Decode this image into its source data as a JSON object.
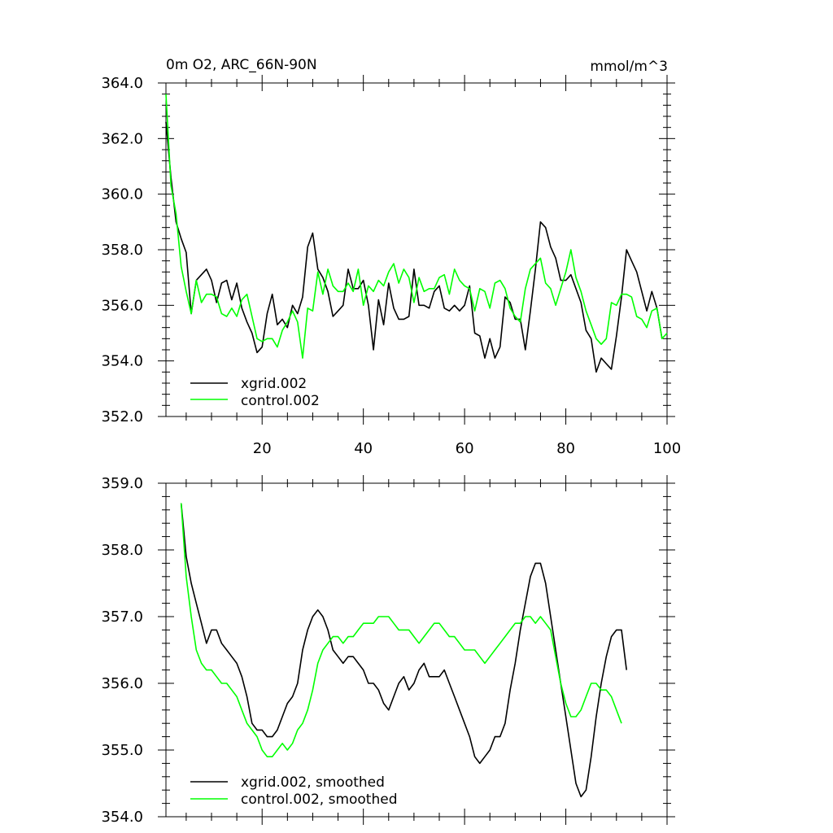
{
  "colors": {
    "series_a": "#000000",
    "series_b": "#00ff00",
    "axis": "#000000",
    "background": "#ffffff"
  },
  "chart_data": [
    {
      "type": "line",
      "title": "0m O2, ARC_66N-90N",
      "units": "mmol/m^3",
      "xlabel": "",
      "ylabel": "",
      "xlim": [
        1,
        100
      ],
      "ylim": [
        352.0,
        364.0
      ],
      "x_ticks": [
        20,
        40,
        60,
        80,
        100
      ],
      "y_ticks": [
        352.0,
        354.0,
        356.0,
        358.0,
        360.0,
        362.0,
        364.0
      ],
      "y_tick_labels": [
        "352.0",
        "354.0",
        "356.0",
        "358.0",
        "360.0",
        "362.0",
        "364.0"
      ],
      "x_tick_labels": [
        "20",
        "40",
        "60",
        "80",
        "100"
      ],
      "legend_position": "bottom-left",
      "series": [
        {
          "name": "xgrid.002",
          "color": "#000000",
          "x_start": 1,
          "values": [
            362.6,
            360.6,
            359.0,
            358.4,
            357.9,
            355.7,
            356.9,
            357.1,
            357.3,
            356.9,
            356.1,
            356.8,
            356.9,
            356.2,
            356.8,
            355.9,
            355.4,
            355.0,
            354.3,
            354.5,
            355.7,
            356.4,
            355.3,
            355.5,
            355.2,
            356.0,
            355.7,
            356.3,
            358.1,
            358.6,
            357.3,
            357.0,
            356.5,
            355.6,
            355.8,
            356.0,
            357.3,
            356.6,
            356.6,
            356.9,
            356.0,
            354.4,
            356.2,
            355.3,
            356.8,
            355.9,
            355.5,
            355.5,
            355.6,
            357.3,
            356.0,
            356.0,
            355.9,
            356.5,
            356.7,
            355.9,
            355.8,
            356.0,
            355.8,
            356.0,
            356.7,
            355.0,
            354.9,
            354.1,
            354.8,
            354.1,
            354.5,
            356.3,
            356.1,
            355.5,
            355.5,
            354.4,
            355.8,
            357.3,
            359.0,
            358.8,
            358.1,
            357.7,
            356.9,
            356.9,
            357.1,
            356.6,
            356.1,
            355.1,
            354.8,
            353.6,
            354.1,
            353.9,
            353.7,
            354.9,
            356.3,
            358.0,
            357.6,
            357.2,
            356.5,
            355.8,
            356.5,
            355.9,
            354.8
          ]
        },
        {
          "name": "control.002",
          "color": "#00ff00",
          "x_start": 1,
          "values": [
            363.6,
            360.3,
            359.3,
            357.4,
            356.5,
            355.7,
            356.9,
            356.1,
            356.4,
            356.4,
            356.3,
            355.7,
            355.6,
            355.9,
            355.6,
            356.2,
            356.4,
            355.6,
            354.8,
            354.7,
            354.8,
            354.8,
            354.5,
            355.1,
            355.4,
            355.8,
            355.4,
            354.1,
            355.9,
            355.8,
            357.2,
            356.4,
            357.3,
            356.7,
            356.5,
            356.5,
            356.8,
            356.5,
            357.3,
            356.0,
            356.7,
            356.5,
            356.9,
            356.7,
            357.2,
            357.5,
            356.8,
            357.3,
            357.0,
            356.1,
            357.0,
            356.5,
            356.6,
            356.6,
            357.0,
            357.1,
            356.4,
            357.3,
            356.9,
            356.7,
            356.6,
            355.8,
            356.6,
            356.5,
            355.9,
            356.8,
            356.9,
            356.6,
            355.9,
            355.6,
            355.4,
            356.6,
            357.3,
            357.5,
            357.7,
            356.8,
            356.6,
            356.0,
            356.6,
            357.2,
            358.0,
            357.0,
            356.5,
            355.8,
            355.3,
            354.8,
            354.6,
            354.8,
            356.1,
            356.0,
            356.4,
            356.4,
            356.3,
            355.6,
            355.5,
            355.2,
            355.8,
            355.9,
            354.8,
            355.0
          ]
        }
      ]
    },
    {
      "type": "line",
      "title": "",
      "xlabel": "",
      "ylabel": "",
      "xlim": [
        1,
        100
      ],
      "ylim": [
        354.0,
        359.0
      ],
      "x_ticks": [
        20,
        40,
        60,
        80,
        100
      ],
      "y_ticks": [
        354.0,
        355.0,
        356.0,
        357.0,
        358.0,
        359.0
      ],
      "y_tick_labels": [
        "354.0",
        "355.0",
        "356.0",
        "357.0",
        "358.0",
        "359.0"
      ],
      "legend_position": "bottom-left",
      "series": [
        {
          "name": "xgrid.002, smoothed",
          "color": "#000000",
          "x_start": 4,
          "values": [
            358.7,
            357.9,
            357.5,
            357.2,
            356.9,
            356.6,
            356.8,
            356.8,
            356.6,
            356.5,
            356.4,
            356.3,
            356.1,
            355.8,
            355.4,
            355.3,
            355.3,
            355.2,
            355.2,
            355.3,
            355.5,
            355.7,
            355.8,
            356.0,
            356.5,
            356.8,
            357.0,
            357.1,
            357.0,
            356.8,
            356.5,
            356.4,
            356.3,
            356.4,
            356.4,
            356.3,
            356.2,
            356.0,
            356.0,
            355.9,
            355.7,
            355.6,
            355.8,
            356.0,
            356.1,
            355.9,
            356.0,
            356.2,
            356.3,
            356.1,
            356.1,
            356.1,
            356.2,
            356.0,
            355.8,
            355.6,
            355.4,
            355.2,
            354.9,
            354.8,
            354.9,
            355.0,
            355.2,
            355.2,
            355.4,
            355.9,
            356.3,
            356.8,
            357.2,
            357.6,
            357.8,
            357.8,
            357.5,
            357.0,
            356.5,
            356.0,
            355.5,
            355.0,
            354.5,
            354.3,
            354.4,
            354.9,
            355.5,
            356.0,
            356.4,
            356.7,
            356.8,
            356.8,
            356.2
          ]
        },
        {
          "name": "control.002, smoothed",
          "color": "#00ff00",
          "x_start": 4,
          "values": [
            358.7,
            357.6,
            357.0,
            356.5,
            356.3,
            356.2,
            356.2,
            356.1,
            356.0,
            356.0,
            355.9,
            355.8,
            355.6,
            355.4,
            355.3,
            355.2,
            355.0,
            354.9,
            354.9,
            355.0,
            355.1,
            355.0,
            355.1,
            355.3,
            355.4,
            355.6,
            355.9,
            356.3,
            356.5,
            356.6,
            356.7,
            356.7,
            356.6,
            356.7,
            356.7,
            356.8,
            356.9,
            356.9,
            356.9,
            357.0,
            357.0,
            357.0,
            356.9,
            356.8,
            356.8,
            356.8,
            356.7,
            356.6,
            356.7,
            356.8,
            356.9,
            356.9,
            356.8,
            356.7,
            356.7,
            356.6,
            356.5,
            356.5,
            356.5,
            356.4,
            356.3,
            356.4,
            356.5,
            356.6,
            356.7,
            356.8,
            356.9,
            356.9,
            357.0,
            357.0,
            356.9,
            357.0,
            356.9,
            356.8,
            356.4,
            356.0,
            355.7,
            355.5,
            355.5,
            355.6,
            355.8,
            356.0,
            356.0,
            355.9,
            355.9,
            355.8,
            355.6,
            355.4
          ]
        }
      ]
    }
  ]
}
